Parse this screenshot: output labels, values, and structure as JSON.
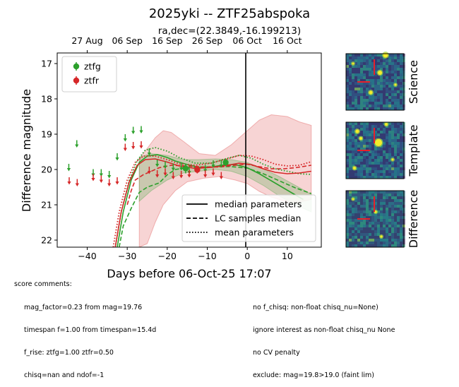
{
  "figure": {
    "title": "2025yki -- ZTF25abspoka",
    "subtitle": "ra,dec=(22.3849,-16.199213)"
  },
  "chart_data": {
    "type": "scatter",
    "title": "2025yki -- ZTF25abspoka",
    "xlabel": "Days before 06-Oct-25 17:07",
    "ylabel": "Difference magnitude",
    "xlim": [
      -47.5,
      18.5
    ],
    "ylim": [
      22.2,
      16.7
    ],
    "y_inverted": true,
    "x_ticks": [
      -40,
      -30,
      -20,
      -10,
      0,
      10
    ],
    "y_ticks": [
      17,
      18,
      19,
      20,
      21,
      22
    ],
    "top_axis_ticks": [
      {
        "label": "27 Aug",
        "x": -40
      },
      {
        "label": "06 Sep",
        "x": -30
      },
      {
        "label": "16 Sep",
        "x": -20
      },
      {
        "label": "26 Sep",
        "x": -10
      },
      {
        "label": "06 Oct",
        "x": 0
      },
      {
        "label": "16 Oct",
        "x": 10
      }
    ],
    "vline_x": 0,
    "colors": {
      "ztfg": "#2ca02c",
      "ztfr": "#d62728"
    },
    "series": [
      {
        "name": "ztfg",
        "color": "#2ca02c",
        "detections": [
          {
            "x": -15.4,
            "y": 19.97,
            "yerr": 0.14
          },
          {
            "x": -5.4,
            "y": 19.8,
            "yerr": 0.1
          }
        ],
        "upper_limits": [
          {
            "x": -44.6,
            "y": 19.92
          },
          {
            "x": -42.6,
            "y": 19.25
          },
          {
            "x": -38.5,
            "y": 20.07
          },
          {
            "x": -36.5,
            "y": 20.07
          },
          {
            "x": -34.5,
            "y": 20.12
          },
          {
            "x": -32.5,
            "y": 19.62
          },
          {
            "x": -30.5,
            "y": 19.08
          },
          {
            "x": -28.5,
            "y": 18.87
          },
          {
            "x": -26.5,
            "y": 18.85
          },
          {
            "x": -24.5,
            "y": 19.48
          },
          {
            "x": -22.5,
            "y": 19.8
          },
          {
            "x": -20.5,
            "y": 19.85
          },
          {
            "x": -18.5,
            "y": 19.91
          },
          {
            "x": -16.5,
            "y": 19.9
          },
          {
            "x": -14.5,
            "y": 20.0
          },
          {
            "x": -10.5,
            "y": 19.95
          },
          {
            "x": -8.5,
            "y": 19.82
          },
          {
            "x": -6.5,
            "y": 19.82
          }
        ],
        "model_median": [
          [
            -32.5,
            22.2
          ],
          [
            -31,
            21.2
          ],
          [
            -29,
            20.3
          ],
          [
            -27,
            19.8
          ],
          [
            -25,
            19.62
          ],
          [
            -22.5,
            19.58
          ],
          [
            -20,
            19.66
          ],
          [
            -18,
            19.76
          ],
          [
            -15,
            19.86
          ],
          [
            -12,
            19.94
          ],
          [
            -9,
            19.93
          ],
          [
            -6,
            19.87
          ],
          [
            -3,
            19.86
          ],
          [
            0,
            19.95
          ],
          [
            3,
            20.12
          ],
          [
            6,
            20.32
          ],
          [
            9,
            20.52
          ],
          [
            12,
            20.72
          ],
          [
            14,
            20.85
          ]
        ],
        "model_lc_median": [
          [
            -32,
            22.2
          ],
          [
            -31,
            21.6
          ],
          [
            -29,
            21.1
          ],
          [
            -27,
            20.65
          ],
          [
            -25,
            20.5
          ],
          [
            -22,
            20.38
          ],
          [
            -20,
            20.15
          ],
          [
            -18,
            20.0
          ],
          [
            -15,
            19.95
          ],
          [
            -12,
            19.93
          ],
          [
            -8,
            19.92
          ],
          [
            -4,
            19.92
          ],
          [
            0,
            19.96
          ],
          [
            4,
            20.12
          ],
          [
            8,
            20.32
          ],
          [
            12,
            20.52
          ],
          [
            16,
            20.68
          ]
        ],
        "model_mean": [
          [
            -33,
            22.2
          ],
          [
            -31.5,
            21.2
          ],
          [
            -29.5,
            20.3
          ],
          [
            -27.5,
            19.75
          ],
          [
            -25.5,
            19.45
          ],
          [
            -23,
            19.38
          ],
          [
            -20,
            19.48
          ],
          [
            -17,
            19.66
          ],
          [
            -13,
            19.82
          ],
          [
            -9,
            19.82
          ],
          [
            -5,
            19.68
          ],
          [
            -2,
            19.6
          ],
          [
            1,
            19.68
          ],
          [
            4,
            19.85
          ],
          [
            7,
            19.98
          ],
          [
            10,
            20.05
          ],
          [
            13,
            20.12
          ],
          [
            16,
            20.14
          ]
        ],
        "band_upper": [
          [
            -27,
            19.65
          ],
          [
            -24,
            19.55
          ],
          [
            -20,
            19.6
          ],
          [
            -16,
            19.72
          ],
          [
            -12,
            19.72
          ],
          [
            -8,
            19.7
          ],
          [
            -4,
            19.72
          ],
          [
            0,
            19.8
          ],
          [
            4,
            19.98
          ],
          [
            8,
            20.2
          ],
          [
            12,
            20.45
          ],
          [
            16,
            20.7
          ]
        ],
        "band_lower": [
          [
            -27,
            20.9
          ],
          [
            -24,
            20.6
          ],
          [
            -20,
            20.3
          ],
          [
            -16,
            20.1
          ],
          [
            -12,
            20.05
          ],
          [
            -8,
            20.0
          ],
          [
            -4,
            20.05
          ],
          [
            0,
            20.2
          ],
          [
            4,
            20.45
          ],
          [
            8,
            20.75
          ],
          [
            12,
            21.0
          ],
          [
            16,
            21.2
          ]
        ]
      },
      {
        "name": "ztfr",
        "color": "#d62728",
        "detections": [
          {
            "x": -12.5,
            "y": 20.01,
            "yerr": 0.1
          }
        ],
        "upper_limits": [
          {
            "x": -44.5,
            "y": 20.3
          },
          {
            "x": -42.5,
            "y": 20.35
          },
          {
            "x": -38.5,
            "y": 20.2
          },
          {
            "x": -36.5,
            "y": 20.25
          },
          {
            "x": -34.5,
            "y": 20.35
          },
          {
            "x": -32.5,
            "y": 20.3
          },
          {
            "x": -30.5,
            "y": 19.35
          },
          {
            "x": -28.5,
            "y": 19.3
          },
          {
            "x": -26.5,
            "y": 19.28
          },
          {
            "x": -24.5,
            "y": 20.0
          },
          {
            "x": -22.5,
            "y": 20.1
          },
          {
            "x": -20.5,
            "y": 20.05
          },
          {
            "x": -18.5,
            "y": 20.15
          },
          {
            "x": -16.5,
            "y": 20.12
          },
          {
            "x": -14.5,
            "y": 20.1
          },
          {
            "x": -10.5,
            "y": 20.1
          },
          {
            "x": -8.5,
            "y": 20.05
          },
          {
            "x": -6.5,
            "y": 20.15
          }
        ],
        "model_median": [
          [
            -33,
            22.2
          ],
          [
            -31.5,
            21.2
          ],
          [
            -29.5,
            20.35
          ],
          [
            -27.5,
            19.88
          ],
          [
            -25.5,
            19.72
          ],
          [
            -23,
            19.7
          ],
          [
            -20,
            19.79
          ],
          [
            -17,
            19.9
          ],
          [
            -13,
            19.97
          ],
          [
            -9,
            19.94
          ],
          [
            -5,
            19.88
          ],
          [
            -2,
            19.82
          ],
          [
            1,
            19.86
          ],
          [
            4,
            19.98
          ],
          [
            7,
            20.08
          ],
          [
            10,
            20.12
          ],
          [
            13,
            20.1
          ],
          [
            16,
            20.05
          ]
        ],
        "model_lc_median": [
          [
            -30,
            21.0
          ],
          [
            -29,
            20.6
          ],
          [
            -28,
            20.3
          ],
          [
            -26,
            20.15
          ],
          [
            -24,
            20.05
          ],
          [
            -22,
            19.95
          ],
          [
            -19,
            19.88
          ],
          [
            -15,
            19.9
          ],
          [
            -11,
            19.93
          ],
          [
            -7,
            19.93
          ],
          [
            -3,
            19.88
          ],
          [
            0,
            19.85
          ],
          [
            3,
            19.92
          ],
          [
            6,
            19.98
          ],
          [
            9,
            19.98
          ],
          [
            12,
            19.95
          ],
          [
            16,
            19.88
          ]
        ],
        "model_mean": [
          [
            -33.5,
            22.2
          ],
          [
            -32,
            21.2
          ],
          [
            -30,
            20.3
          ],
          [
            -28,
            19.8
          ],
          [
            -26,
            19.62
          ],
          [
            -23,
            19.62
          ],
          [
            -20,
            19.72
          ],
          [
            -17,
            19.84
          ],
          [
            -13,
            19.88
          ],
          [
            -9,
            19.82
          ],
          [
            -5,
            19.7
          ],
          [
            -2,
            19.6
          ],
          [
            1,
            19.62
          ],
          [
            4,
            19.72
          ],
          [
            7,
            19.85
          ],
          [
            10,
            19.9
          ],
          [
            13,
            19.88
          ],
          [
            16,
            19.78
          ]
        ],
        "band_upper": [
          [
            -27,
            19.7
          ],
          [
            -25,
            19.4
          ],
          [
            -23,
            19.1
          ],
          [
            -21,
            18.9
          ],
          [
            -19,
            18.95
          ],
          [
            -16,
            19.2
          ],
          [
            -12,
            19.55
          ],
          [
            -8,
            19.6
          ],
          [
            -4,
            19.3
          ],
          [
            0,
            18.9
          ],
          [
            3,
            18.6
          ],
          [
            6,
            18.45
          ],
          [
            10,
            18.5
          ],
          [
            13,
            18.65
          ],
          [
            16,
            18.75
          ]
        ],
        "band_lower": [
          [
            -27,
            22.2
          ],
          [
            -25,
            22.1
          ],
          [
            -23,
            21.5
          ],
          [
            -21,
            21.0
          ],
          [
            -18,
            20.6
          ],
          [
            -15,
            20.35
          ],
          [
            -11,
            20.25
          ],
          [
            -7,
            20.2
          ],
          [
            -3,
            20.3
          ],
          [
            0,
            20.4
          ],
          [
            3,
            20.62
          ],
          [
            6,
            20.78
          ],
          [
            10,
            20.92
          ],
          [
            13,
            20.92
          ],
          [
            16,
            20.85
          ]
        ]
      }
    ],
    "legend": {
      "position": "top-left",
      "entries": [
        "ztfg",
        "ztfr"
      ]
    },
    "style_legend": {
      "position": "bottom-right",
      "entries": [
        {
          "label": "median parameters",
          "dash": "solid"
        },
        {
          "label": "LC samples median",
          "dash": "dashed"
        },
        {
          "label": "mean parameters",
          "dash": "dotted"
        }
      ]
    }
  },
  "cutouts": [
    {
      "label": "Science",
      "background": "#2e5b84"
    },
    {
      "label": "Template",
      "background": "#2a5c86"
    },
    {
      "label": "Difference",
      "background": "#2d6d7f"
    }
  ],
  "score_comments": {
    "header": "score comments:",
    "left": [
      "mag_factor=0.23 from mag=19.76",
      "timespan f=1.00 from timespan=15.4d",
      "f_rise: ztfg=1.00 ztfr=0.50",
      "chisq=nan and ndof=-1"
    ],
    "right": [
      "no f_chisq: non-float chisq_nu=None)",
      "ignore interest as non-float chisq_nu None",
      "no CV penalty",
      "exclude: mag=19.8>19.0 (faint lim)"
    ]
  }
}
